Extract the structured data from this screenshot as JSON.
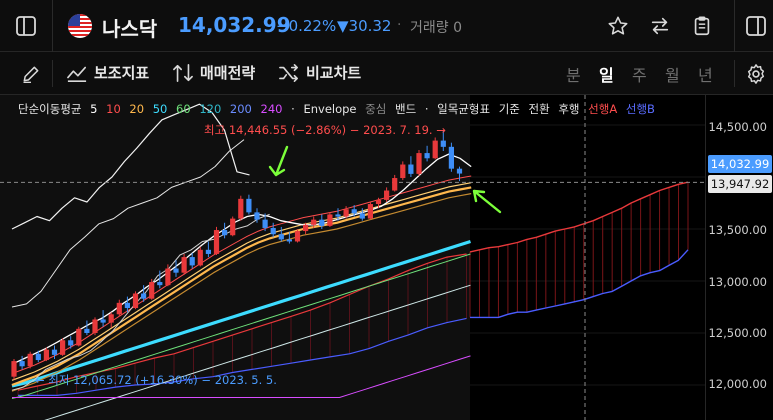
{
  "header": {
    "name": "나스닥",
    "price": "14,032.99",
    "change_pct": "−0.22%",
    "change_val": "▼30.32",
    "separator": "·",
    "volume_label": "거래량 0"
  },
  "toolbar": {
    "indicators_label": "보조지표",
    "strategy_label": "매매전략",
    "compare_label": "비교차트",
    "periods": [
      "분",
      "일",
      "주",
      "월",
      "년"
    ],
    "active_period": "일"
  },
  "legend": {
    "sma_label": "단순이동평균",
    "p5": "5",
    "p10": "10",
    "p20": "20",
    "p50": "50",
    "p60": "60",
    "p120": "120",
    "p200": "200",
    "p240": "240",
    "dot": "·",
    "envelope": "Envelope",
    "bollinger": "중심",
    "band": "밴드",
    "dot2": "·",
    "ichimoku": "일목균형표",
    "base": "기준",
    "conversion": "전환",
    "lagging": "후행",
    "span_a": "선행A",
    "span_b": "선행B"
  },
  "annotations": {
    "high": "최고 14,446.55 (−2.86%) − 2023. 7. 19. →",
    "low": "← 최저 12,065.72 (+16.30%) − 2023. 5. 5."
  },
  "axis": {
    "ticks": [
      "14,500.00",
      "14,000.00",
      "13,500.00",
      "13,000.00",
      "12,500.00",
      "12,000.00"
    ],
    "current_price_tag": "14,032.99",
    "crosshair_tag": "13,947.92"
  },
  "colors": {
    "up": "#e8393b",
    "down": "#3e8ef7",
    "accent_blue": "#4b9cff",
    "ma5": "#ffffff",
    "ma10": "#ff4d4d",
    "ma20": "#ffb84d",
    "ma50": "#3ddcff",
    "ma60": "#6ee07a",
    "ma120": "#2fb6c8",
    "ma200": "#6b8cff",
    "ma240": "#d84dff",
    "span_a": "#e8393b",
    "span_b": "#4a5cff",
    "arrow": "#7cff3a"
  },
  "chart_data": {
    "type": "candlestick",
    "symbol": "나스닥",
    "period": "일",
    "ylim": [
      11900,
      14800
    ],
    "high": 14446.55,
    "low": 12065.72,
    "last": 14032.99,
    "crosshair": 13947.92,
    "candles": [
      [
        12080,
        12250,
        12050,
        12230
      ],
      [
        12230,
        12280,
        12150,
        12180
      ],
      [
        12180,
        12320,
        12160,
        12300
      ],
      [
        12300,
        12330,
        12220,
        12240
      ],
      [
        12240,
        12360,
        12230,
        12340
      ],
      [
        12340,
        12380,
        12250,
        12290
      ],
      [
        12290,
        12450,
        12280,
        12430
      ],
      [
        12430,
        12470,
        12350,
        12380
      ],
      [
        12380,
        12560,
        12370,
        12540
      ],
      [
        12540,
        12620,
        12480,
        12500
      ],
      [
        12500,
        12650,
        12480,
        12630
      ],
      [
        12630,
        12720,
        12560,
        12600
      ],
      [
        12600,
        12700,
        12550,
        12680
      ],
      [
        12680,
        12820,
        12660,
        12790
      ],
      [
        12790,
        12850,
        12700,
        12740
      ],
      [
        12740,
        12900,
        12730,
        12880
      ],
      [
        12880,
        12960,
        12800,
        12830
      ],
      [
        12830,
        13020,
        12820,
        12990
      ],
      [
        12990,
        13100,
        12930,
        12960
      ],
      [
        12960,
        13160,
        12950,
        13120
      ],
      [
        13120,
        13200,
        13040,
        13080
      ],
      [
        13080,
        13260,
        13060,
        13230
      ],
      [
        13230,
        13270,
        13120,
        13150
      ],
      [
        13150,
        13330,
        13140,
        13300
      ],
      [
        13300,
        13380,
        13230,
        13260
      ],
      [
        13260,
        13520,
        13250,
        13490
      ],
      [
        13490,
        13560,
        13410,
        13440
      ],
      [
        13440,
        13620,
        13430,
        13600
      ],
      [
        13600,
        13820,
        13580,
        13790
      ],
      [
        13790,
        13830,
        13640,
        13660
      ],
      [
        13660,
        13700,
        13560,
        13590
      ],
      [
        13590,
        13650,
        13480,
        13510
      ],
      [
        13510,
        13560,
        13420,
        13450
      ],
      [
        13450,
        13520,
        13380,
        13400
      ],
      [
        13400,
        13470,
        13360,
        13380
      ],
      [
        13380,
        13500,
        13370,
        13480
      ],
      [
        13480,
        13560,
        13450,
        13540
      ],
      [
        13540,
        13620,
        13510,
        13590
      ],
      [
        13590,
        13640,
        13500,
        13530
      ],
      [
        13530,
        13660,
        13520,
        13640
      ],
      [
        13640,
        13700,
        13580,
        13620
      ],
      [
        13620,
        13720,
        13600,
        13690
      ],
      [
        13690,
        13730,
        13620,
        13650
      ],
      [
        13650,
        13700,
        13580,
        13600
      ],
      [
        13600,
        13760,
        13590,
        13740
      ],
      [
        13740,
        13800,
        13700,
        13780
      ],
      [
        13780,
        13900,
        13760,
        13870
      ],
      [
        13870,
        14020,
        13860,
        13990
      ],
      [
        13990,
        14150,
        13970,
        14120
      ],
      [
        14120,
        14200,
        14000,
        14030
      ],
      [
        14030,
        14260,
        14010,
        14230
      ],
      [
        14230,
        14300,
        14150,
        14180
      ],
      [
        14180,
        14380,
        14170,
        14350
      ],
      [
        14350,
        14446.55,
        14250,
        14290
      ],
      [
        14290,
        14330,
        14050,
        14080
      ],
      [
        14080,
        14100,
        13960,
        14032.99
      ]
    ],
    "ma5": [
      12200,
      12250,
      12300,
      12350,
      12410,
      12470,
      12530,
      12590,
      12640,
      12710,
      12790,
      12860,
      12940,
      13010,
      13090,
      13170,
      13260,
      13350,
      13430,
      13500,
      13570,
      13620,
      13640,
      13620,
      13580,
      13560,
      13540,
      13540,
      13560,
      13590,
      13620,
      13650,
      13680,
      13720,
      13790,
      13880,
      13980,
      14080,
      14170,
      14220,
      14180,
      14100
    ],
    "ma20": [
      12000,
      12040,
      12080,
      12130,
      12180,
      12240,
      12300,
      12370,
      12440,
      12510,
      12580,
      12650,
      12720,
      12790,
      12860,
      12930,
      13000,
      13070,
      13140,
      13200,
      13260,
      13320,
      13370,
      13410,
      13440,
      13470,
      13500,
      13520,
      13540,
      13560,
      13590,
      13620,
      13650,
      13680,
      13710,
      13740,
      13770,
      13800,
      13830,
      13860,
      13880,
      13900
    ],
    "ma50": [
      11990,
      12020,
      12060,
      12100,
      12140,
      12180,
      12220,
      12260,
      12300,
      12340,
      12380,
      12420,
      12460,
      12500,
      12540,
      12580,
      12620,
      12660,
      12700,
      12740,
      12780,
      12820,
      12860,
      12900,
      12940,
      12980,
      13020,
      13060,
      13100,
      13140,
      13180,
      13220,
      13260,
      13300,
      13340,
      13380
    ],
    "span_a_future": [
      13280,
      13300,
      13320,
      13330,
      13350,
      13370,
      13400,
      13420,
      13450,
      13480,
      13500,
      13520,
      13550,
      13580,
      13620,
      13660,
      13700,
      13750,
      13790,
      13830,
      13870,
      13900,
      13930,
      13950
    ],
    "span_b_future": [
      12650,
      12650,
      12650,
      12650,
      12680,
      12700,
      12700,
      12720,
      12740,
      12760,
      12780,
      12800,
      12820,
      12850,
      12880,
      12900,
      12950,
      13000,
      13050,
      13080,
      13100,
      13150,
      13200,
      13300
    ]
  }
}
